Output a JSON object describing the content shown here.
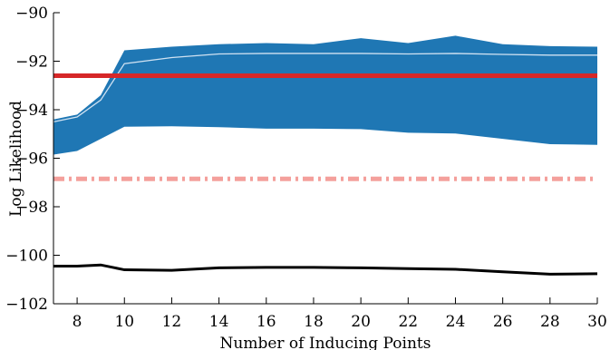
{
  "chart_data": {
    "type": "line",
    "xlabel": "Number of Inducing Points",
    "ylabel": "Log Likelihood",
    "xlim": [
      7,
      30
    ],
    "ylim": [
      -102,
      -90
    ],
    "xticks": [
      8,
      10,
      12,
      14,
      16,
      18,
      20,
      22,
      24,
      26,
      28,
      30
    ],
    "yticks": [
      -102,
      -100,
      -98,
      -96,
      -94,
      -92,
      -90
    ],
    "ytick_labels": [
      "−102",
      "−100",
      "−98",
      "−96",
      "−94",
      "−92",
      "−90"
    ],
    "xtick_labels": [
      "8",
      "10",
      "12",
      "14",
      "16",
      "18",
      "20",
      "22",
      "24",
      "26",
      "28",
      "30"
    ],
    "grid": false,
    "band": {
      "color": "#1f77b4",
      "x": [
        7,
        8,
        9,
        10,
        12,
        14,
        16,
        18,
        20,
        22,
        24,
        26,
        28,
        30
      ],
      "upper": [
        -94.4,
        -94.2,
        -93.4,
        -91.55,
        -91.4,
        -91.3,
        -91.25,
        -91.3,
        -91.05,
        -91.25,
        -90.95,
        -91.3,
        -91.38,
        -91.4
      ],
      "lower": [
        -95.85,
        -95.7,
        -95.2,
        -94.7,
        -94.68,
        -94.72,
        -94.78,
        -94.78,
        -94.8,
        -94.95,
        -94.98,
        -95.2,
        -95.42,
        -95.45
      ]
    },
    "mean_line": {
      "color": "#d0e2f2",
      "x": [
        7,
        8,
        9,
        10,
        12,
        14,
        16,
        18,
        20,
        22,
        24,
        26,
        28,
        30
      ],
      "y": [
        -94.5,
        -94.3,
        -93.6,
        -92.1,
        -91.85,
        -91.7,
        -91.68,
        -91.68,
        -91.68,
        -91.7,
        -91.68,
        -91.72,
        -91.75,
        -91.75
      ]
    },
    "reference_solid": {
      "color": "#d62728",
      "y": -92.6
    },
    "reference_dashdot": {
      "color": "#f4a09c",
      "y": -96.85
    },
    "black_line": {
      "color": "#000000",
      "x": [
        7,
        8,
        9,
        10,
        12,
        14,
        16,
        18,
        20,
        22,
        24,
        26,
        28,
        30
      ],
      "y": [
        -100.45,
        -100.45,
        -100.4,
        -100.6,
        -100.62,
        -100.52,
        -100.5,
        -100.5,
        -100.52,
        -100.55,
        -100.58,
        -100.68,
        -100.78,
        -100.76
      ]
    }
  }
}
